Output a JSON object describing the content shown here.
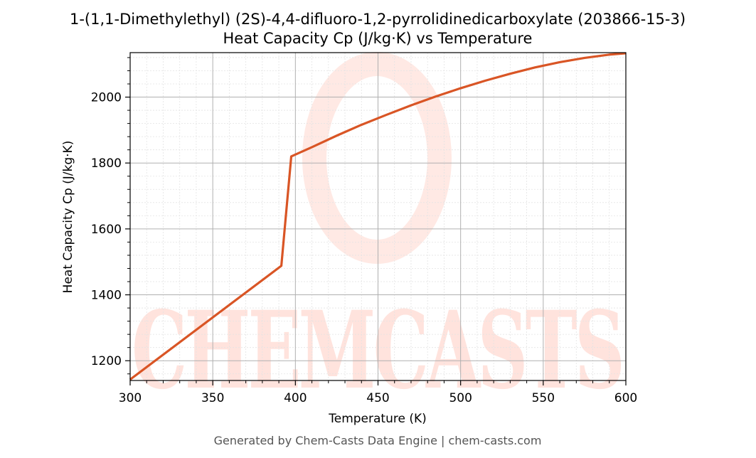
{
  "chart_data": {
    "type": "line",
    "title_line1": "1-(1,1-Dimethylethyl) (2S)-4,4-difluoro-1,2-pyrrolidinedicarboxylate (203866-15-3)",
    "title_line2": "Heat Capacity Cp (J/kg·K) vs Temperature",
    "xlabel": "Temperature (K)",
    "ylabel": "Heat Capacity Cp (J/kg·K)",
    "xlim": [
      300,
      600
    ],
    "ylim": [
      1140,
      2135
    ],
    "xticks": [
      300,
      350,
      400,
      450,
      500,
      550,
      600
    ],
    "yticks": [
      1200,
      1400,
      1600,
      1800,
      2000
    ],
    "grid": true,
    "legend": "none",
    "line_color": "#d95525",
    "series": [
      {
        "x": [
          300,
          391.5,
          397.5,
          410,
          425,
          440,
          455,
          470,
          485,
          500,
          515,
          530,
          545,
          560,
          575,
          590,
          600
        ],
        "values": [
          1143,
          1488,
          1820,
          1848,
          1883,
          1916,
          1946,
          1975,
          2002,
          2027,
          2050,
          2071,
          2090,
          2106,
          2119,
          2129,
          2133
        ]
      }
    ]
  },
  "watermark": {
    "text": "CHEMCASTS",
    "color": "#ff7a5c"
  },
  "footer": "Generated by Chem-Casts Data Engine | chem-casts.com"
}
